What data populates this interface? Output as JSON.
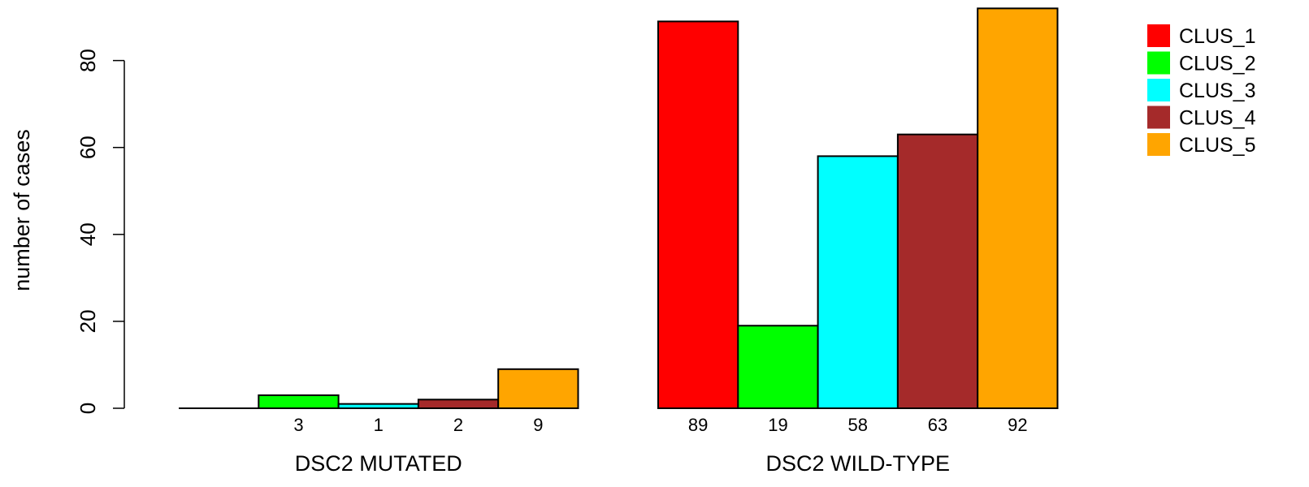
{
  "chart_data": {
    "type": "bar",
    "ylabel": "number of cases",
    "ylim": [
      0,
      92
    ],
    "yticks": [
      0,
      20,
      40,
      60,
      80
    ],
    "groups": [
      "DSC2 MUTATED",
      "DSC2 WILD-TYPE"
    ],
    "series": [
      {
        "name": "CLUS_1",
        "color": "#FF0000",
        "values": [
          0,
          89
        ]
      },
      {
        "name": "CLUS_2",
        "color": "#00FF00",
        "values": [
          3,
          19
        ]
      },
      {
        "name": "CLUS_3",
        "color": "#00FFFF",
        "values": [
          1,
          58
        ]
      },
      {
        "name": "CLUS_4",
        "color": "#A52A2A",
        "values": [
          2,
          63
        ]
      },
      {
        "name": "CLUS_5",
        "color": "#FFA500",
        "values": [
          9,
          92
        ]
      }
    ],
    "bar_labels": [
      [
        "",
        "3",
        "1",
        "2",
        "9"
      ],
      [
        "89",
        "19",
        "58",
        "63",
        "92"
      ]
    ],
    "legend_position": "top-right"
  }
}
